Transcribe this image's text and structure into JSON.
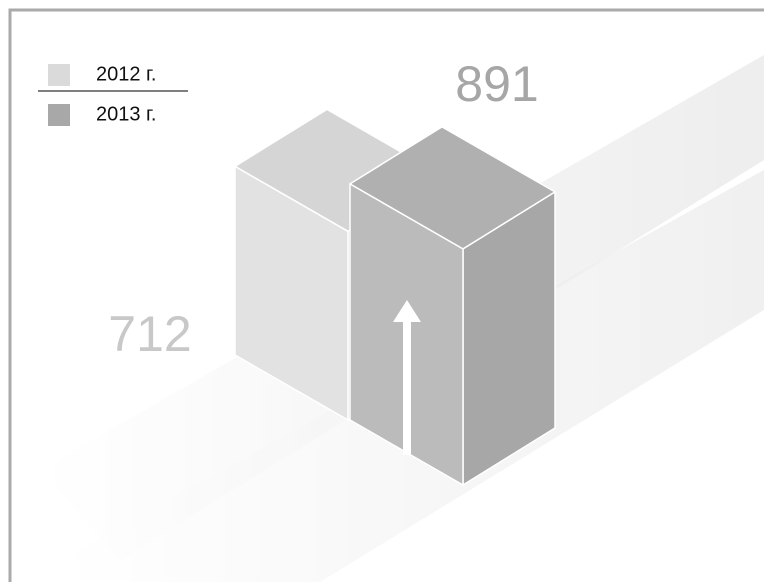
{
  "chart_data": {
    "type": "bar",
    "categories": [
      "2012 г.",
      "2013 г."
    ],
    "values": [
      712,
      891
    ],
    "colors": [
      "#d9d9d9",
      "#b4b4b5"
    ]
  }
}
